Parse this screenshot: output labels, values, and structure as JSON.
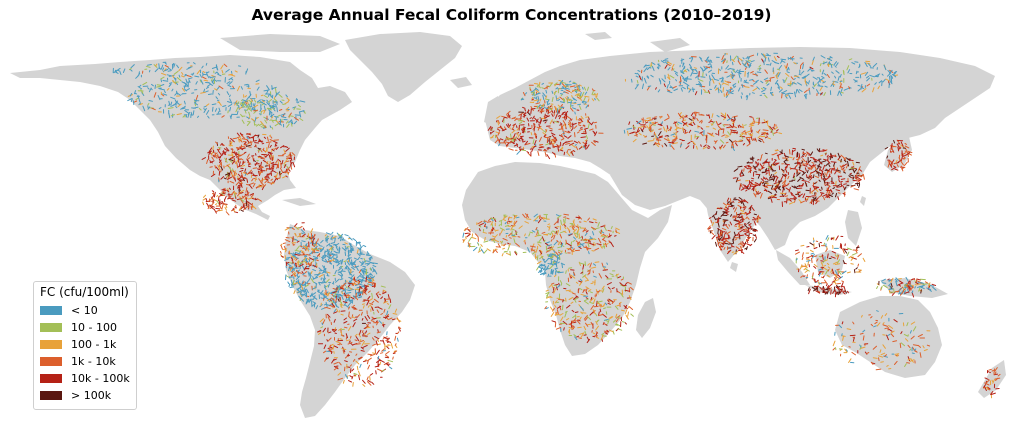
{
  "title": "Average Annual Fecal Coliform Concentrations (2010–2019)",
  "land_color": "#d4d4d4",
  "legend": {
    "title": "FC (cfu/100ml)",
    "placement": "lower-left",
    "items": [
      {
        "label": "< 10",
        "color": "#4a9bbf"
      },
      {
        "label": "10 - 100",
        "color": "#a3bf57"
      },
      {
        "label": "100 - 1k",
        "color": "#e8a23a"
      },
      {
        "label": "1k - 10k",
        "color": "#dc5f2c"
      },
      {
        "label": "10k - 100k",
        "color": "#b52116"
      },
      {
        "label": "> 100k",
        "color": "#5a1710"
      }
    ]
  }
}
